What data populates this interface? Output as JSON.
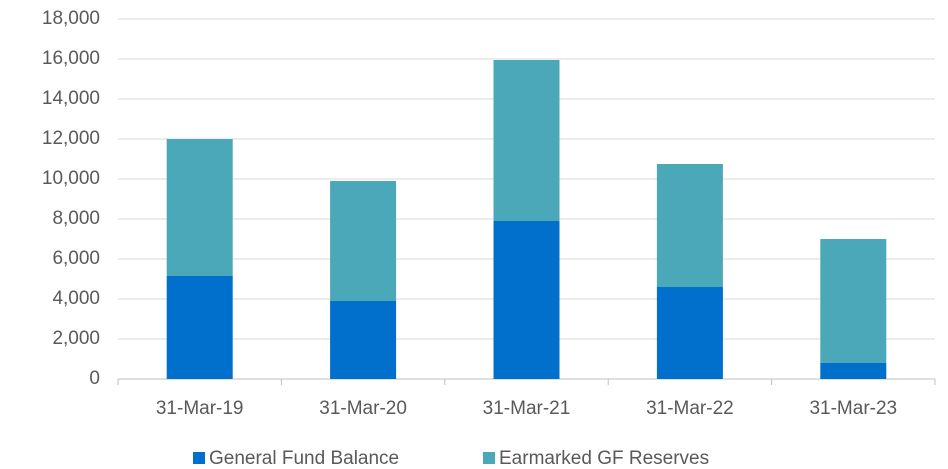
{
  "chart_data": {
    "type": "stacked_bar",
    "categories": [
      "31-Mar-19",
      "31-Mar-20",
      "31-Mar-21",
      "31-Mar-22",
      "31-Mar-23"
    ],
    "series": [
      {
        "name": "General Fund Balance",
        "color": "#0070cc",
        "values": [
          5150,
          3900,
          7900,
          4600,
          800
        ]
      },
      {
        "name": "Earmarked GF Reserves",
        "color": "#4aa8b8",
        "values": [
          6850,
          6000,
          8050,
          6150,
          6200
        ]
      }
    ],
    "ylim": [
      0,
      18000
    ],
    "yticks": [
      0,
      {
        "value": 2000,
        "label": "2,000"
      },
      {
        "value": 4000,
        "label": "4,000"
      },
      {
        "value": 6000,
        "label": "6,000"
      },
      {
        "value": 8000,
        "label": "8,000"
      },
      {
        "value": 10000,
        "label": "10,000"
      },
      {
        "value": 12000,
        "label": "12,000"
      },
      {
        "value": 14000,
        "label": "14,000"
      },
      {
        "value": 16000,
        "label": "16,000"
      },
      {
        "value": 18000,
        "label": "18,000"
      }
    ],
    "grid": true,
    "legend": "bottom"
  }
}
